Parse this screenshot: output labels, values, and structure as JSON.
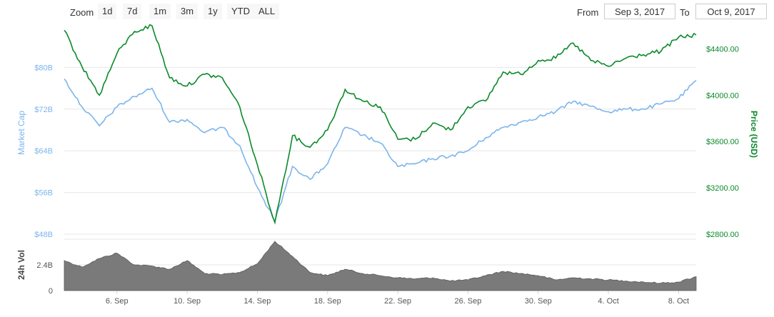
{
  "toolbar": {
    "zoom_label": "Zoom",
    "zoom_buttons": [
      "1d",
      "7d",
      "1m",
      "3m",
      "1y",
      "YTD",
      "ALL"
    ],
    "from_label": "From",
    "from_value": "Sep 3, 2017",
    "to_label": "To",
    "to_value": "Oct 9, 2017"
  },
  "chart_data": {
    "type": "line",
    "x_tick_labels": [
      "6. Sep",
      "10. Sep",
      "14. Sep",
      "18. Sep",
      "22. Sep",
      "26. Sep",
      "30. Sep",
      "4. Oct",
      "8. Oct"
    ],
    "xlim": [
      "2017-09-03",
      "2017-10-09"
    ],
    "y_left": {
      "label": "Market Cap",
      "ticks": [
        "$48B",
        "$56B",
        "$64B",
        "$72B",
        "$80B"
      ],
      "range": [
        48,
        88
      ],
      "unit": "billion USD",
      "color": "#7cb5ec"
    },
    "y_right": {
      "label": "Price (USD)",
      "ticks": [
        "$2800.00",
        "$3200.00",
        "$3600.00",
        "$4000.00",
        "$4400.00"
      ],
      "range": [
        2800,
        4600
      ],
      "color": "#0a8a2a"
    },
    "volume": {
      "label": "24h Vol",
      "ticks": [
        "2.4B",
        "0"
      ],
      "range": [
        0,
        4.8
      ],
      "unit": "billion USD",
      "color": "#777777"
    },
    "grid": true,
    "series": [
      {
        "name": "Market Cap",
        "axis": "left",
        "x": [
          "2017-09-03",
          "2017-09-04",
          "2017-09-05",
          "2017-09-06",
          "2017-09-07",
          "2017-09-08",
          "2017-09-09",
          "2017-09-10",
          "2017-09-11",
          "2017-09-12",
          "2017-09-13",
          "2017-09-14",
          "2017-09-15",
          "2017-09-16",
          "2017-09-17",
          "2017-09-18",
          "2017-09-19",
          "2017-09-20",
          "2017-09-21",
          "2017-09-22",
          "2017-09-23",
          "2017-09-24",
          "2017-09-25",
          "2017-09-26",
          "2017-09-27",
          "2017-09-28",
          "2017-09-29",
          "2017-09-30",
          "2017-10-01",
          "2017-10-02",
          "2017-10-03",
          "2017-10-04",
          "2017-10-05",
          "2017-10-06",
          "2017-10-07",
          "2017-10-08",
          "2017-10-09"
        ],
        "values": [
          77.8,
          72.5,
          68.8,
          72.4,
          74.4,
          76.0,
          69.5,
          70.0,
          67.5,
          68.5,
          65.0,
          57.0,
          50.5,
          61.0,
          58.5,
          61.5,
          68.5,
          67.0,
          65.5,
          61.0,
          61.5,
          62.5,
          63.0,
          64.0,
          66.5,
          68.5,
          69.5,
          70.5,
          71.5,
          73.5,
          72.5,
          71.5,
          72.0,
          72.0,
          73.0,
          74.0,
          77.5
        ]
      },
      {
        "name": "Price (USD)",
        "axis": "right",
        "x": [
          "2017-09-03",
          "2017-09-04",
          "2017-09-05",
          "2017-09-06",
          "2017-09-07",
          "2017-09-08",
          "2017-09-09",
          "2017-09-10",
          "2017-09-11",
          "2017-09-12",
          "2017-09-13",
          "2017-09-14",
          "2017-09-15",
          "2017-09-16",
          "2017-09-17",
          "2017-09-18",
          "2017-09-19",
          "2017-09-20",
          "2017-09-21",
          "2017-09-22",
          "2017-09-23",
          "2017-09-24",
          "2017-09-25",
          "2017-09-26",
          "2017-09-27",
          "2017-09-28",
          "2017-09-29",
          "2017-09-30",
          "2017-10-01",
          "2017-10-02",
          "2017-10-03",
          "2017-10-04",
          "2017-10-05",
          "2017-10-06",
          "2017-10-07",
          "2017-10-08",
          "2017-10-09"
        ],
        "values": [
          4560,
          4250,
          4000,
          4360,
          4550,
          4600,
          4150,
          4080,
          4180,
          4150,
          3900,
          3400,
          2900,
          3650,
          3550,
          3700,
          4050,
          3950,
          3900,
          3620,
          3620,
          3760,
          3700,
          3900,
          3950,
          4200,
          4180,
          4300,
          4320,
          4450,
          4300,
          4250,
          4320,
          4350,
          4380,
          4500,
          4520
        ]
      },
      {
        "name": "24h Vol",
        "axis": "volume",
        "x": [
          "2017-09-03",
          "2017-09-04",
          "2017-09-05",
          "2017-09-06",
          "2017-09-07",
          "2017-09-08",
          "2017-09-09",
          "2017-09-10",
          "2017-09-11",
          "2017-09-12",
          "2017-09-13",
          "2017-09-14",
          "2017-09-15",
          "2017-09-16",
          "2017-09-17",
          "2017-09-18",
          "2017-09-19",
          "2017-09-20",
          "2017-09-21",
          "2017-09-22",
          "2017-09-23",
          "2017-09-24",
          "2017-09-25",
          "2017-09-26",
          "2017-09-27",
          "2017-09-28",
          "2017-09-29",
          "2017-09-30",
          "2017-10-01",
          "2017-10-02",
          "2017-10-03",
          "2017-10-04",
          "2017-10-05",
          "2017-10-06",
          "2017-10-07",
          "2017-10-08",
          "2017-10-09"
        ],
        "values": [
          2.8,
          2.2,
          3.0,
          3.5,
          2.4,
          2.3,
          2.0,
          2.8,
          1.6,
          1.5,
          1.7,
          2.5,
          4.6,
          3.2,
          1.7,
          1.4,
          2.0,
          1.6,
          1.4,
          1.2,
          1.1,
          1.2,
          0.9,
          1.0,
          1.4,
          1.8,
          1.6,
          1.4,
          1.0,
          1.2,
          1.1,
          1.0,
          0.9,
          0.8,
          0.7,
          0.8,
          1.3
        ]
      }
    ]
  }
}
